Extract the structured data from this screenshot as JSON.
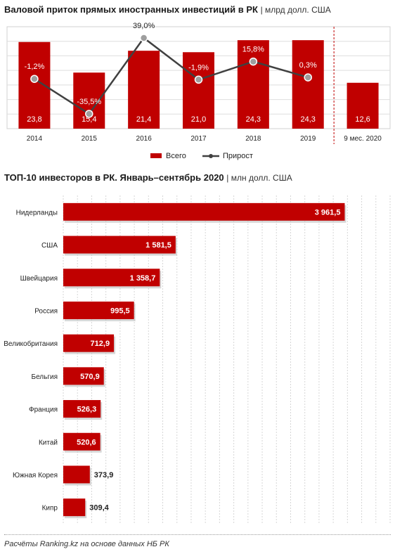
{
  "chart1": {
    "title": "Валовой приток прямых иностранных инвестиций в РК",
    "unit": "| млрд долл. США",
    "legend": {
      "bar": "Всего",
      "line": "Прирост"
    },
    "colors": {
      "bar": "#c00000",
      "line": "#404040",
      "marker": "#9e9e9e",
      "separator": "#c00000"
    }
  },
  "chart2": {
    "title": "ТОП-10 инвесторов в РК. Январь–сентябрь 2020",
    "unit": "| млн долл. США",
    "colors": {
      "bar": "#c00000"
    }
  },
  "footer": "Расчёты Ranking.kz на основе данных НБ РК",
  "chart_data": [
    {
      "type": "bar",
      "title": "Валовой приток прямых иностранных инвестиций в РК",
      "categories": [
        "2014",
        "2015",
        "2016",
        "2017",
        "2018",
        "2019",
        "9 мес. 2020"
      ],
      "series": [
        {
          "name": "Всего",
          "type": "bar",
          "values": [
            23.8,
            15.4,
            21.4,
            21.0,
            24.3,
            24.3,
            12.6
          ],
          "labels": [
            "23,8",
            "15,4",
            "21,4",
            "21,0",
            "24,3",
            "24,3",
            "12,6"
          ]
        },
        {
          "name": "Прирост",
          "type": "line",
          "values": [
            -1.2,
            -35.5,
            39.0,
            -1.9,
            15.8,
            0.3,
            null
          ],
          "labels": [
            "-1,2%",
            "-35,5%",
            "39,0%",
            "-1,9%",
            "15,8%",
            "0,3%",
            ""
          ]
        }
      ],
      "ylim": [
        0,
        28
      ],
      "y2lim": [
        -50,
        50
      ],
      "grid": true,
      "legend": "bottom"
    },
    {
      "type": "bar",
      "orientation": "horizontal",
      "title": "ТОП-10 инвесторов в РК. Январь–сентябрь 2020",
      "categories": [
        "Нидерланды",
        "США",
        "Швейцария",
        "Россия",
        "Великобритания",
        "Бельгия",
        "Франция",
        "Китай",
        "Южная Корея",
        "Кипр"
      ],
      "values": [
        3961.5,
        1581.5,
        1358.7,
        995.5,
        712.9,
        570.9,
        526.3,
        520.6,
        373.9,
        309.4
      ],
      "labels": [
        "3 961,5",
        "1 581,5",
        "1 358,7",
        "995,5",
        "712,9",
        "570,9",
        "526,3",
        "520,6",
        "373,9",
        "309,4"
      ],
      "xlim": [
        0,
        4600
      ],
      "grid": true
    }
  ]
}
